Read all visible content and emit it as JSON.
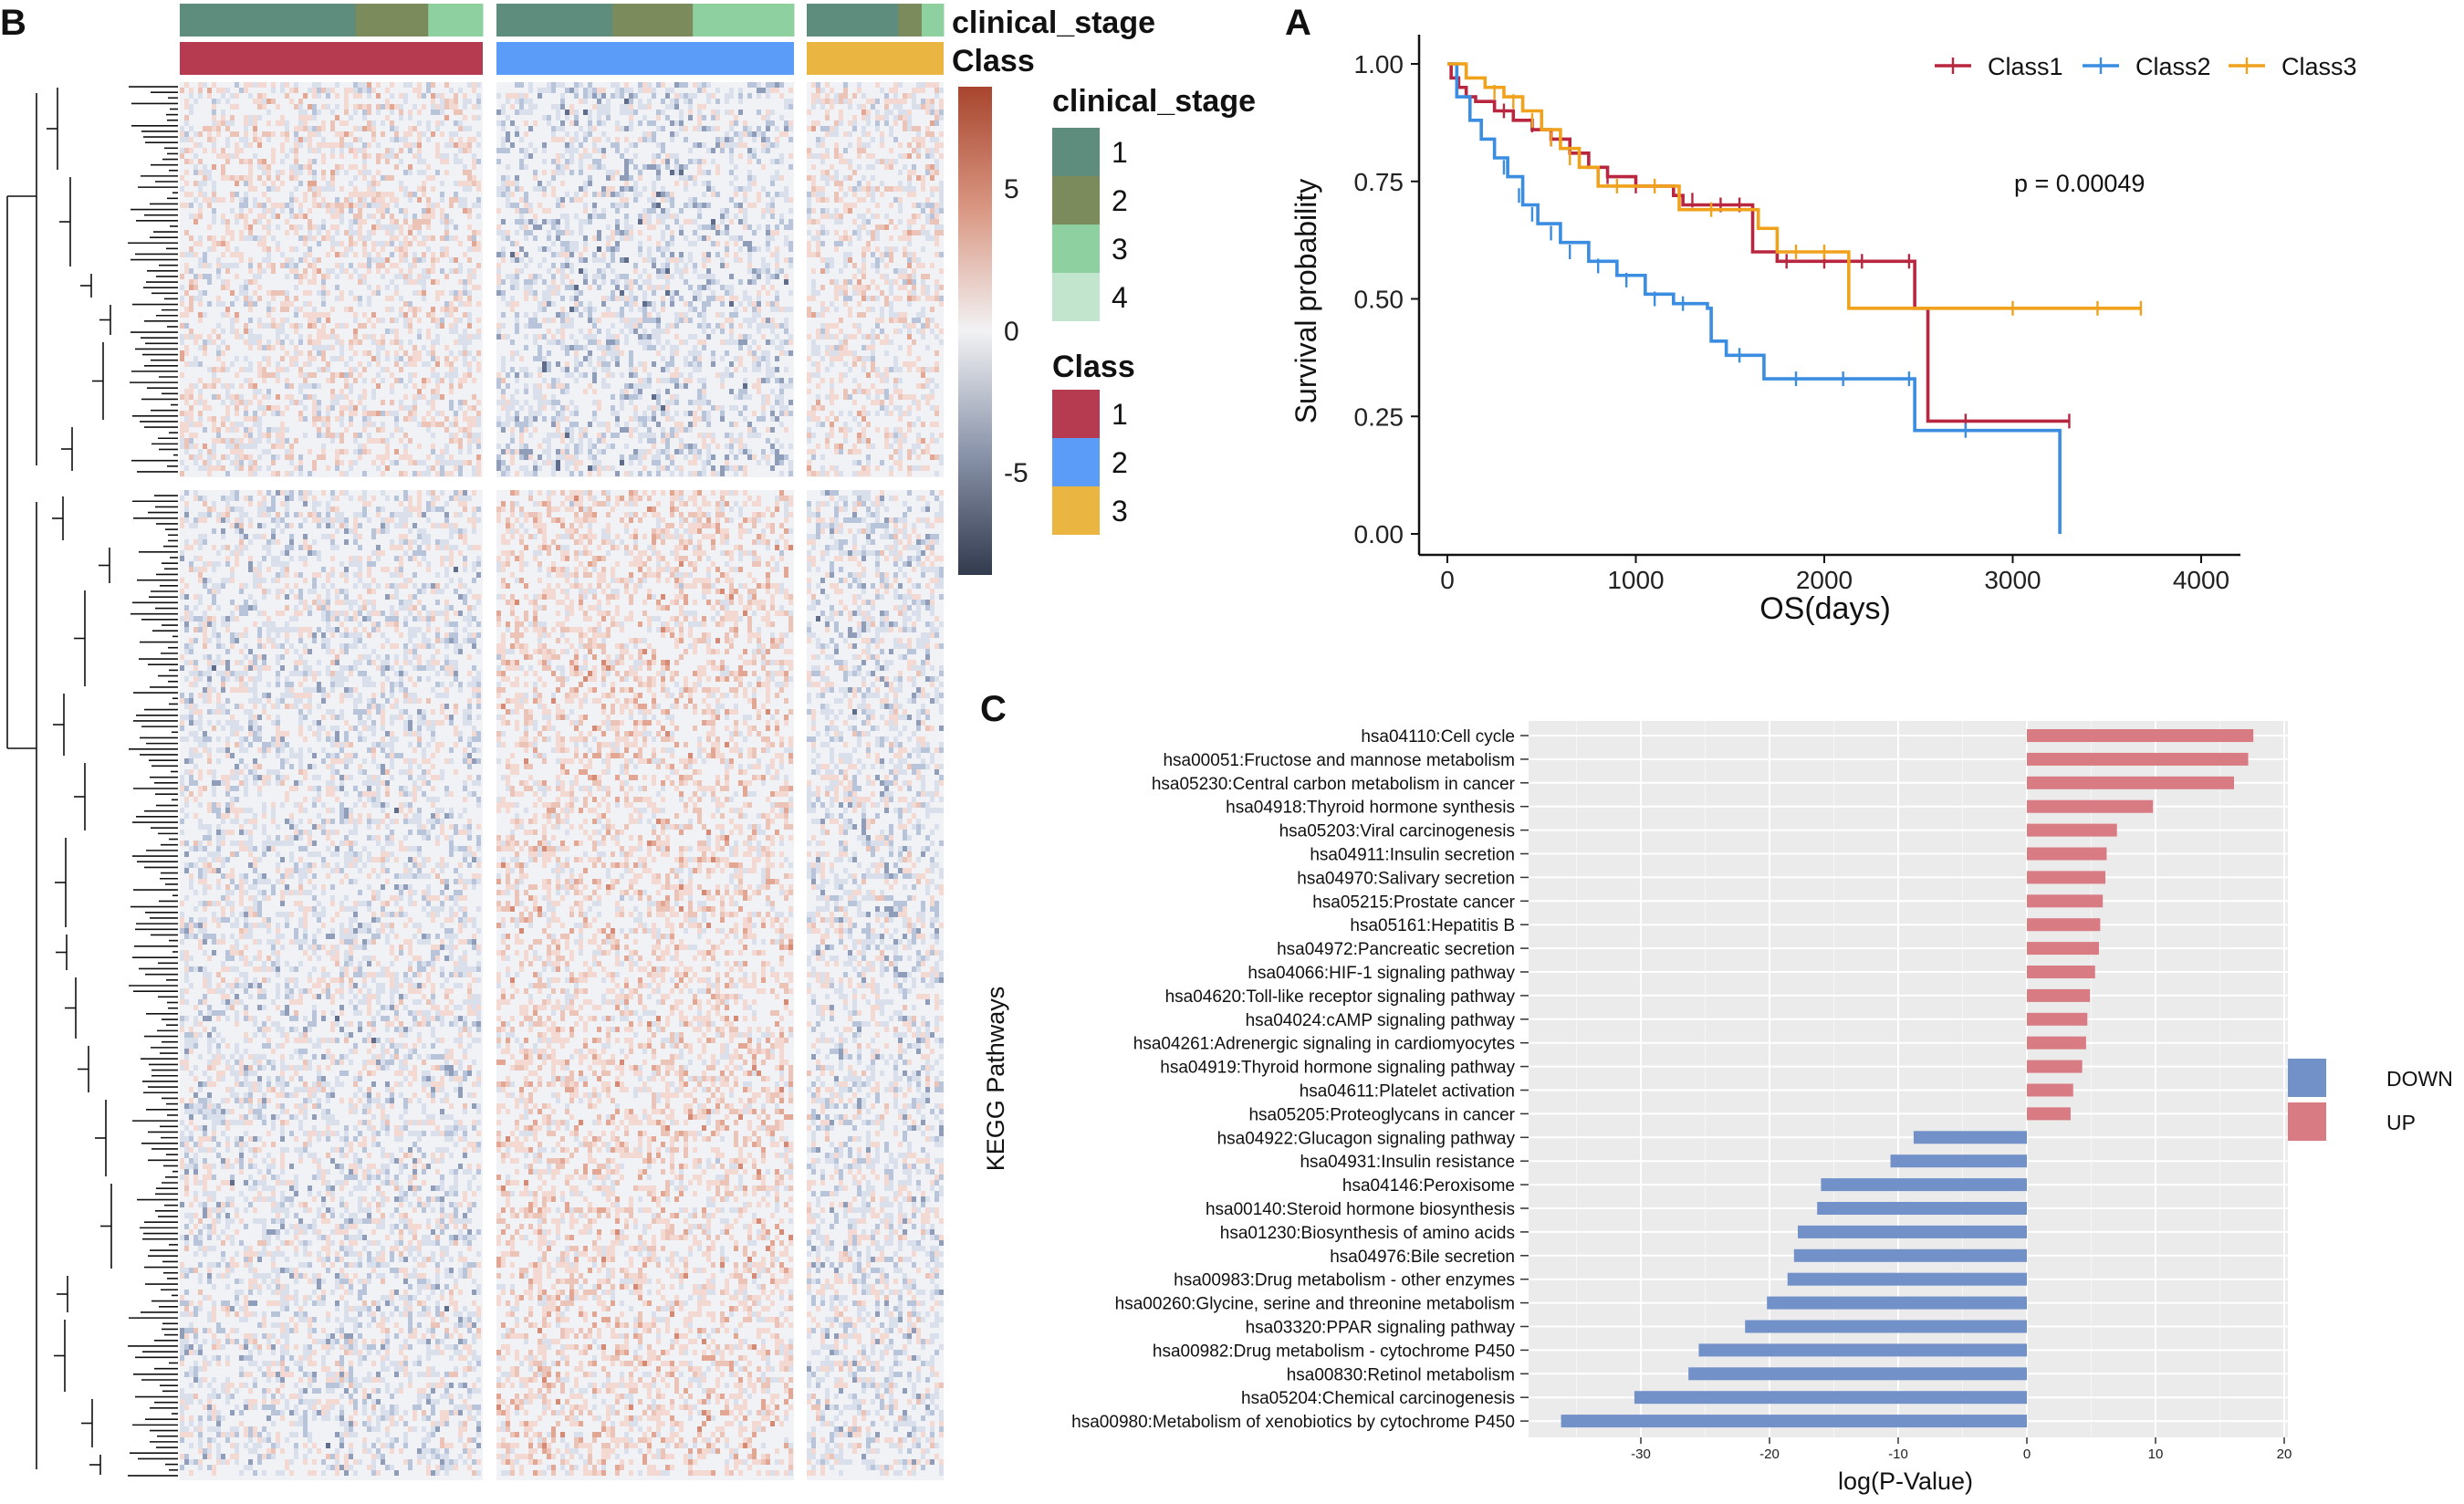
{
  "figure": {
    "panel_labels": {
      "heatmap": "B",
      "survival": "A",
      "kegg": "C"
    }
  },
  "chart_data": [
    {
      "type": "heatmap",
      "panel": "B",
      "annotation_tracks": [
        "clinical_stage",
        "Class"
      ],
      "colorbar": {
        "ticks": [
          5,
          0,
          -5
        ],
        "range": [
          -8,
          8
        ]
      },
      "legend_clinical": {
        "title": "clinical_stage",
        "items": [
          "1",
          "2",
          "3",
          "4"
        ],
        "colors": [
          "#5e8c7d",
          "#7b8b5c",
          "#8fd0a0",
          "#c2e6cd"
        ]
      },
      "legend_class": {
        "title": "Class",
        "items": [
          "1",
          "2",
          "3"
        ],
        "colors": [
          "#b63b50",
          "#5b9cf8",
          "#eab540"
        ]
      },
      "class_columns": [
        {
          "label": "1",
          "color": "#b63b50",
          "stage_blocks": [
            [
              1,
              0.58
            ],
            [
              2,
              0.24
            ],
            [
              3,
              0.18
            ]
          ]
        },
        {
          "label": "2",
          "color": "#5b9cf8",
          "stage_blocks": [
            [
              1,
              0.39
            ],
            [
              2,
              0.27
            ],
            [
              3,
              0.34
            ]
          ]
        },
        {
          "label": "3",
          "color": "#eab540",
          "stage_blocks": [
            [
              1,
              0.67
            ],
            [
              2,
              0.17
            ],
            [
              3,
              0.16
            ]
          ]
        }
      ],
      "row_groups": [
        "upper",
        "lower"
      ]
    },
    {
      "type": "line",
      "panel": "A",
      "title": "",
      "xlabel": "OS(days)",
      "ylabel": "Survival probability",
      "xlim": [
        0,
        4000
      ],
      "ylim": [
        0,
        1
      ],
      "x_ticks": [
        "0",
        "1000",
        "2000",
        "3000",
        "4000"
      ],
      "y_ticks": [
        "0.00",
        "0.25",
        "0.50",
        "0.75",
        "1.00"
      ],
      "annotation": "p = 0.00049",
      "legend": [
        "Class1",
        "Class2",
        "Class3"
      ],
      "series": [
        {
          "name": "Class1",
          "color": "#b8263f",
          "points": [
            [
              0,
              1.0
            ],
            [
              20,
              0.97
            ],
            [
              60,
              0.95
            ],
            [
              100,
              0.93
            ],
            [
              150,
              0.92
            ],
            [
              250,
              0.9
            ],
            [
              350,
              0.88
            ],
            [
              450,
              0.86
            ],
            [
              550,
              0.84
            ],
            [
              650,
              0.81
            ],
            [
              750,
              0.78
            ],
            [
              850,
              0.76
            ],
            [
              1000,
              0.74
            ],
            [
              1200,
              0.72
            ],
            [
              1250,
              0.7
            ],
            [
              1600,
              0.7
            ],
            [
              1620,
              0.6
            ],
            [
              1750,
              0.58
            ],
            [
              1900,
              0.58
            ],
            [
              2480,
              0.58
            ],
            [
              2480,
              0.48
            ],
            [
              2550,
              0.48
            ],
            [
              2550,
              0.24
            ],
            [
              3300,
              0.24
            ]
          ],
          "censor": [
            [
              300,
              0.9
            ],
            [
              450,
              0.87
            ],
            [
              550,
              0.84
            ],
            [
              700,
              0.8
            ],
            [
              850,
              0.76
            ],
            [
              1000,
              0.74
            ],
            [
              1300,
              0.71
            ],
            [
              1450,
              0.7
            ],
            [
              1550,
              0.7
            ],
            [
              1800,
              0.58
            ],
            [
              2000,
              0.58
            ],
            [
              2200,
              0.58
            ],
            [
              2450,
              0.58
            ],
            [
              2750,
              0.24
            ],
            [
              3300,
              0.24
            ]
          ]
        },
        {
          "name": "Class2",
          "color": "#3a8de0",
          "points": [
            [
              0,
              1.0
            ],
            [
              50,
              0.93
            ],
            [
              120,
              0.88
            ],
            [
              180,
              0.84
            ],
            [
              250,
              0.8
            ],
            [
              320,
              0.76
            ],
            [
              400,
              0.7
            ],
            [
              480,
              0.66
            ],
            [
              600,
              0.62
            ],
            [
              750,
              0.58
            ],
            [
              900,
              0.55
            ],
            [
              1050,
              0.51
            ],
            [
              1200,
              0.49
            ],
            [
              1380,
              0.48
            ],
            [
              1400,
              0.41
            ],
            [
              1480,
              0.38
            ],
            [
              1650,
              0.38
            ],
            [
              1680,
              0.33
            ],
            [
              2480,
              0.33
            ],
            [
              2480,
              0.22
            ],
            [
              3250,
              0.22
            ],
            [
              3250,
              0.0
            ]
          ],
          "censor": [
            [
              300,
              0.78
            ],
            [
              380,
              0.72
            ],
            [
              450,
              0.68
            ],
            [
              550,
              0.64
            ],
            [
              650,
              0.6
            ],
            [
              800,
              0.57
            ],
            [
              950,
              0.54
            ],
            [
              1100,
              0.5
            ],
            [
              1250,
              0.49
            ],
            [
              1550,
              0.38
            ],
            [
              1850,
              0.33
            ],
            [
              2100,
              0.33
            ],
            [
              2450,
              0.33
            ],
            [
              2750,
              0.22
            ]
          ]
        },
        {
          "name": "Class3",
          "color": "#f0a21c",
          "points": [
            [
              0,
              1.0
            ],
            [
              100,
              0.97
            ],
            [
              200,
              0.95
            ],
            [
              300,
              0.93
            ],
            [
              400,
              0.9
            ],
            [
              500,
              0.86
            ],
            [
              600,
              0.82
            ],
            [
              700,
              0.78
            ],
            [
              800,
              0.74
            ],
            [
              1200,
              0.74
            ],
            [
              1230,
              0.69
            ],
            [
              1600,
              0.69
            ],
            [
              1650,
              0.65
            ],
            [
              1750,
              0.6
            ],
            [
              2100,
              0.6
            ],
            [
              2130,
              0.48
            ],
            [
              3680,
              0.48
            ]
          ],
          "censor": [
            [
              250,
              0.94
            ],
            [
              350,
              0.92
            ],
            [
              450,
              0.88
            ],
            [
              550,
              0.84
            ],
            [
              650,
              0.8
            ],
            [
              900,
              0.74
            ],
            [
              1100,
              0.74
            ],
            [
              1400,
              0.69
            ],
            [
              1850,
              0.6
            ],
            [
              2000,
              0.6
            ],
            [
              3000,
              0.48
            ],
            [
              3450,
              0.48
            ],
            [
              3680,
              0.48
            ]
          ]
        }
      ]
    },
    {
      "type": "bar",
      "panel": "C",
      "orientation": "horizontal",
      "xlabel": "log(P-Value)",
      "ylabel": "KEGG Pathways",
      "xlim": [
        -38,
        20
      ],
      "x_ticks": [
        "-30",
        "-20",
        "-10",
        "0",
        "10",
        "20"
      ],
      "legend": [
        {
          "name": "DOWN",
          "color": "#7391c9"
        },
        {
          "name": "UP",
          "color": "#d97b83"
        }
      ],
      "categories": [
        "hsa04110:Cell cycle",
        "hsa00051:Fructose and mannose metabolism",
        "hsa05230:Central carbon metabolism in cancer",
        "hsa04918:Thyroid hormone synthesis",
        "hsa05203:Viral carcinogenesis",
        "hsa04911:Insulin secretion",
        "hsa04970:Salivary secretion",
        "hsa05215:Prostate cancer",
        "hsa05161:Hepatitis B",
        "hsa04972:Pancreatic secretion",
        "hsa04066:HIF-1 signaling pathway",
        "hsa04620:Toll-like receptor signaling pathway",
        "hsa04024:cAMP signaling pathway",
        "hsa04261:Adrenergic signaling in cardiomyocytes",
        "hsa04919:Thyroid hormone signaling pathway",
        "hsa04611:Platelet activation",
        "hsa05205:Proteoglycans in cancer",
        "hsa04922:Glucagon signaling pathway",
        "hsa04931:Insulin resistance",
        "hsa04146:Peroxisome",
        "hsa00140:Steroid hormone biosynthesis",
        "hsa01230:Biosynthesis of amino acids",
        "hsa04976:Bile secretion",
        "hsa00983:Drug metabolism - other enzymes",
        "hsa00260:Glycine, serine and threonine metabolism",
        "hsa03320:PPAR signaling pathway",
        "hsa00982:Drug metabolism - cytochrome P450",
        "hsa00830:Retinol metabolism",
        "hsa05204:Chemical carcinogenesis",
        "hsa00980:Metabolism of xenobiotics by cytochrome P450"
      ],
      "values": [
        17.6,
        17.2,
        16.1,
        9.8,
        7.0,
        6.2,
        6.1,
        5.9,
        5.7,
        5.6,
        5.3,
        4.9,
        4.7,
        4.6,
        4.3,
        3.6,
        3.4,
        -8.8,
        -10.6,
        -16.0,
        -16.3,
        -17.8,
        -18.1,
        -18.6,
        -20.2,
        -21.9,
        -25.5,
        -26.3,
        -30.5,
        -36.2
      ]
    }
  ]
}
